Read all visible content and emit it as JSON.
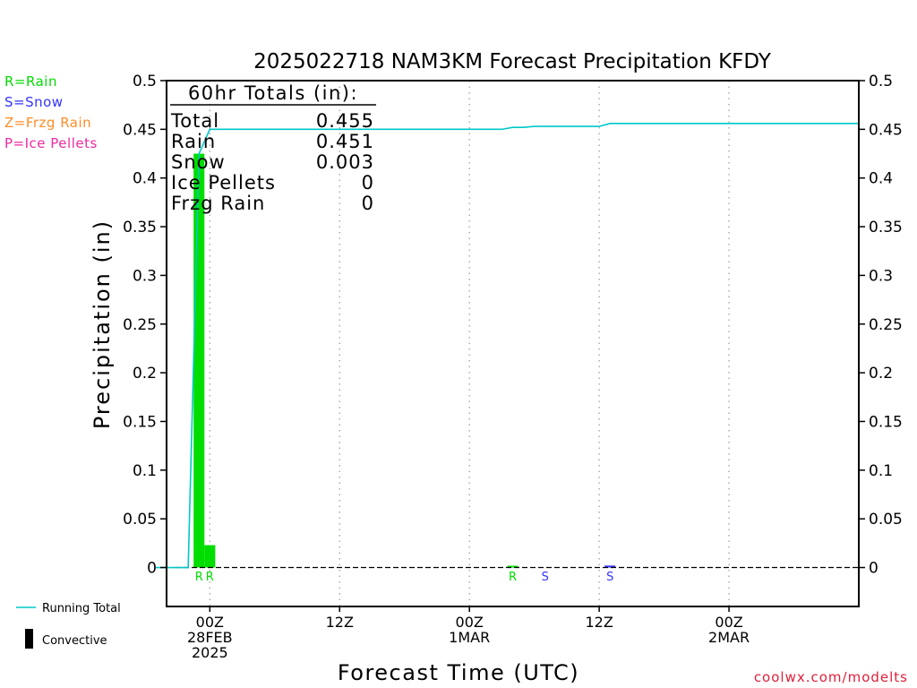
{
  "chart_data": {
    "type": "bar",
    "title": "2025022718 NAM3KM Forecast Precipitation KFDY",
    "xlabel": "Forecast Time (UTC)",
    "ylabel": "Precipitation (in)",
    "ylim": [
      -0.04,
      0.5
    ],
    "xlim_hours": [
      -4,
      60
    ],
    "y_ticks": [
      0,
      0.05,
      0.1,
      0.15,
      0.2,
      0.25,
      0.3,
      0.35,
      0.4,
      0.45,
      0.5
    ],
    "y_tick_labels": [
      "0",
      "0.05",
      "0.1",
      "0.15",
      "0.2",
      "0.25",
      "0.3",
      "0.35",
      "0.4",
      "0.45",
      "0.5"
    ],
    "x_ticks": [
      {
        "hour": 0,
        "lines": [
          "00Z",
          "28FEB",
          "2025"
        ]
      },
      {
        "hour": 12,
        "lines": [
          "12Z"
        ]
      },
      {
        "hour": 24,
        "lines": [
          "00Z",
          "1MAR"
        ]
      },
      {
        "hour": 36,
        "lines": [
          "12Z"
        ]
      },
      {
        "hour": 48,
        "lines": [
          "00Z",
          "2MAR"
        ]
      }
    ],
    "grid": "vertical-dotted",
    "precip_bars": [
      {
        "start_hour": -1.5,
        "end_hour": -0.5,
        "value": 0.425,
        "type_label": "R",
        "color": "#00dd00"
      },
      {
        "start_hour": -0.5,
        "end_hour": 0.5,
        "value": 0.023,
        "type_label": "R",
        "color": "#00dd00"
      },
      {
        "start_hour": 27.5,
        "end_hour": 28.5,
        "value": 0.001,
        "type_label": "R",
        "color": "#00dd00"
      },
      {
        "start_hour": 30.5,
        "end_hour": 31.5,
        "value": 0.0,
        "type_label": "S",
        "color": "#3333ff"
      },
      {
        "start_hour": 36.5,
        "end_hour": 37.5,
        "value": 0.002,
        "type_label": "S",
        "color": "#3333ff"
      }
    ],
    "running_total": {
      "color": "#00c8c8",
      "points": [
        [
          -5,
          0
        ],
        [
          -2,
          0
        ],
        [
          -1,
          0.425
        ],
        [
          0,
          0.45
        ],
        [
          1,
          0.45
        ],
        [
          27,
          0.45
        ],
        [
          28,
          0.452
        ],
        [
          29,
          0.452
        ],
        [
          30,
          0.453
        ],
        [
          36,
          0.453
        ],
        [
          37,
          0.456
        ],
        [
          60,
          0.456
        ]
      ]
    },
    "totals_box": {
      "header": "60hr Totals (in):",
      "rows": [
        {
          "label": "Total",
          "value": "0.455"
        },
        {
          "label": "Rain",
          "value": "0.451"
        },
        {
          "label": "Snow",
          "value": "0.003"
        },
        {
          "label": "Ice Pellets",
          "value": "0"
        },
        {
          "label": "Frzg Rain",
          "value": "0"
        }
      ]
    },
    "type_legend": [
      {
        "text": "R=Rain",
        "color": "#00dd00"
      },
      {
        "text": "S=Snow",
        "color": "#3333ff"
      },
      {
        "text": "Z=Frzg Rain",
        "color": "#ff8c2a"
      },
      {
        "text": "P=Ice Pellets",
        "color": "#ee2aa0"
      }
    ],
    "series_legend": [
      {
        "text": "Running Total",
        "kind": "line",
        "color": "#00c8c8"
      },
      {
        "text": "Convective",
        "kind": "bar",
        "color": "#000000"
      }
    ],
    "credit": {
      "text": "coolwx.com/modelts",
      "color": "#e0203a"
    }
  }
}
